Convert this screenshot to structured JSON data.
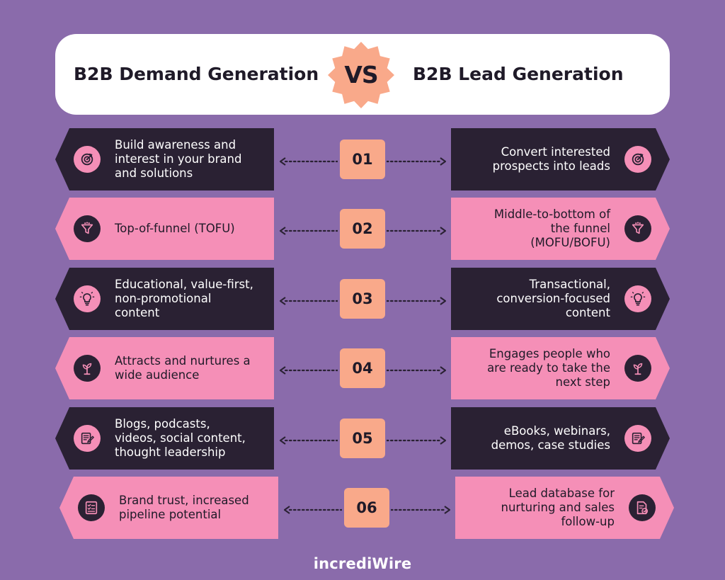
{
  "header": {
    "left_title": "B2B Demand Generation",
    "vs": "VS",
    "right_title": "B2B Lead Generation",
    "badge_color": "#f9a98a"
  },
  "rows": [
    {
      "number": "01",
      "theme": "dark",
      "left": {
        "lines": [
          "Build awareness and",
          "interest in your brand",
          "and solutions"
        ],
        "icon": "target-icon"
      },
      "right": {
        "lines": [
          "Convert interested",
          "prospects into leads"
        ],
        "icon": "target-icon"
      }
    },
    {
      "number": "02",
      "theme": "pink",
      "left": {
        "lines": [
          "Top-of-funnel (TOFU)"
        ],
        "icon": "funnel-icon"
      },
      "right": {
        "lines": [
          "Middle-to-bottom of",
          "the funnel",
          "(MOFU/BOFU)"
        ],
        "icon": "funnel-icon"
      }
    },
    {
      "number": "03",
      "theme": "dark",
      "left": {
        "lines": [
          "Educational, value-first,",
          "non-promotional",
          "content"
        ],
        "icon": "lightbulb-icon"
      },
      "right": {
        "lines": [
          "Transactional,",
          "conversion-focused",
          "content"
        ],
        "icon": "lightbulb-icon"
      }
    },
    {
      "number": "04",
      "theme": "pink",
      "left": {
        "lines": [
          "Attracts and nurtures a",
          "wide audience"
        ],
        "icon": "growth-plant-icon"
      },
      "right": {
        "lines": [
          "Engages people who",
          "are ready to take the",
          "next step"
        ],
        "icon": "growth-plant-icon"
      }
    },
    {
      "number": "05",
      "theme": "dark",
      "left": {
        "lines": [
          "Blogs, podcasts,",
          "videos, social content,",
          "thought leadership"
        ],
        "icon": "content-edit-icon"
      },
      "right": {
        "lines": [
          "eBooks, webinars,",
          "demos, case studies"
        ],
        "icon": "content-edit-icon"
      }
    },
    {
      "number": "06",
      "theme": "pink",
      "left": {
        "lines": [
          "Brand trust, increased",
          "pipeline potential"
        ],
        "icon": "checklist-icon"
      },
      "right": {
        "lines": [
          "Lead database for",
          "nurturing and sales",
          "follow-up"
        ],
        "icon": "document-check-icon"
      }
    }
  ],
  "colors": {
    "background": "#8a6bab",
    "dark_card": "#2a2133",
    "pink_card": "#f58fb7",
    "number_box": "#f9a98a"
  },
  "footer": {
    "logo_text": "incrediWire"
  }
}
